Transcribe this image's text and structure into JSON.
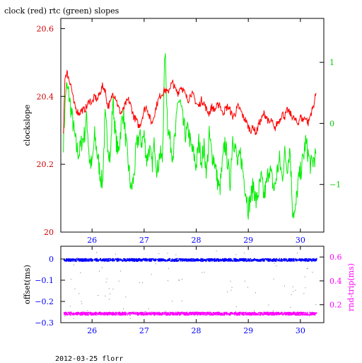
{
  "title": "clock (red) rtc (green) slopes",
  "footer": "2012-03-25 florr",
  "colors": {
    "clock": "#ff0000",
    "rtc": "#00ee00",
    "offset": "#0000ff",
    "rndtrip": "#ff00ff",
    "axis": "#000000"
  },
  "chart_data": [
    {
      "type": "line",
      "title": "clock (red) rtc (green) slopes",
      "xlabel": "",
      "ylabel": "clockslope",
      "xlim": [
        25.4,
        30.45
      ],
      "x_ticks": [
        26,
        27,
        28,
        29,
        30
      ],
      "ylim": [
        20.0,
        20.63
      ],
      "y_ticks": [
        20.0,
        20.2,
        20.4,
        20.6
      ],
      "y_tick_labels": [
        "20",
        "20.2",
        "20.4",
        "20.6"
      ],
      "y2lim": [
        -1.78,
        1.72
      ],
      "y2_ticks": [
        -1,
        0,
        1
      ],
      "y2_tick_labels": [
        "−1",
        "0",
        "1"
      ],
      "series": [
        {
          "name": "clock",
          "axis": "left",
          "x": [
            25.45,
            25.48,
            25.52,
            25.56,
            25.6,
            25.65,
            25.7,
            25.75,
            25.8,
            25.85,
            25.9,
            25.95,
            26.0,
            26.05,
            26.1,
            26.15,
            26.2,
            26.25,
            26.3,
            26.35,
            26.4,
            26.45,
            26.5,
            26.55,
            26.6,
            26.65,
            26.7,
            26.75,
            26.8,
            26.85,
            26.9,
            26.95,
            27.0,
            27.05,
            27.1,
            27.15,
            27.2,
            27.25,
            27.3,
            27.35,
            27.4,
            27.45,
            27.5,
            27.55,
            27.6,
            27.65,
            27.7,
            27.75,
            27.8,
            27.85,
            27.9,
            27.95,
            28.0,
            28.05,
            28.1,
            28.15,
            28.2,
            28.25,
            28.3,
            28.35,
            28.4,
            28.45,
            28.5,
            28.55,
            28.6,
            28.65,
            28.7,
            28.75,
            28.8,
            28.85,
            28.9,
            28.95,
            29.0,
            29.05,
            29.1,
            29.15,
            29.2,
            29.25,
            29.3,
            29.35,
            29.4,
            29.45,
            29.5,
            29.55,
            29.6,
            29.65,
            29.7,
            29.75,
            29.8,
            29.85,
            29.9,
            29.95,
            30.0,
            30.05,
            30.1,
            30.15,
            30.2,
            30.25,
            30.3
          ],
          "y": [
            20.28,
            20.46,
            20.47,
            20.45,
            20.43,
            20.38,
            20.36,
            20.35,
            20.36,
            20.36,
            20.37,
            20.39,
            20.38,
            20.4,
            20.39,
            20.41,
            20.43,
            20.42,
            20.37,
            20.38,
            20.41,
            20.4,
            20.37,
            20.35,
            20.36,
            20.38,
            20.39,
            20.37,
            20.34,
            20.33,
            20.31,
            20.33,
            20.36,
            20.37,
            20.34,
            20.32,
            20.35,
            20.38,
            20.4,
            20.41,
            20.42,
            20.41,
            20.43,
            20.44,
            20.42,
            20.41,
            20.43,
            20.42,
            20.4,
            20.39,
            20.41,
            20.4,
            20.38,
            20.37,
            20.39,
            20.38,
            20.36,
            20.35,
            20.37,
            20.36,
            20.37,
            20.38,
            20.35,
            20.36,
            20.37,
            20.36,
            20.34,
            20.35,
            20.37,
            20.36,
            20.34,
            20.33,
            20.31,
            20.3,
            20.31,
            20.29,
            20.32,
            20.33,
            20.35,
            20.34,
            20.32,
            20.33,
            20.3,
            20.32,
            20.33,
            20.35,
            20.34,
            20.36,
            20.35,
            20.34,
            20.33,
            20.32,
            20.34,
            20.33,
            20.34,
            20.32,
            20.35,
            20.37,
            20.41
          ]
        },
        {
          "name": "rtc",
          "axis": "right",
          "x": [
            25.45,
            25.5,
            25.55,
            25.6,
            25.65,
            25.7,
            25.75,
            25.8,
            25.85,
            25.9,
            25.95,
            26.0,
            26.05,
            26.1,
            26.15,
            26.2,
            26.25,
            26.3,
            26.35,
            26.4,
            26.45,
            26.5,
            26.55,
            26.6,
            26.65,
            26.7,
            26.75,
            26.8,
            26.85,
            26.9,
            26.95,
            27.0,
            27.05,
            27.1,
            27.15,
            27.2,
            27.25,
            27.3,
            27.35,
            27.4,
            27.45,
            27.5,
            27.55,
            27.6,
            27.65,
            27.7,
            27.75,
            27.8,
            27.85,
            27.9,
            27.95,
            28.0,
            28.05,
            28.1,
            28.15,
            28.2,
            28.25,
            28.3,
            28.35,
            28.4,
            28.45,
            28.5,
            28.55,
            28.6,
            28.65,
            28.7,
            28.75,
            28.8,
            28.85,
            28.9,
            28.95,
            29.0,
            29.05,
            29.1,
            29.15,
            29.2,
            29.25,
            29.3,
            29.35,
            29.4,
            29.45,
            29.5,
            29.55,
            29.6,
            29.65,
            29.7,
            29.75,
            29.8,
            29.85,
            29.9,
            29.95,
            30.0,
            30.05,
            30.1,
            30.15,
            30.2,
            30.25,
            30.3
          ],
          "y": [
            -0.3,
            0.6,
            0.5,
            0.2,
            -0.1,
            -0.4,
            -0.5,
            -0.3,
            -0.2,
            0.1,
            -0.6,
            -0.7,
            -0.2,
            -0.5,
            -0.8,
            -1.0,
            0.1,
            -0.3,
            -0.6,
            0.4,
            -0.2,
            -0.5,
            -0.1,
            0.2,
            -0.3,
            -0.7,
            -1.1,
            -0.9,
            -0.4,
            -0.2,
            -0.3,
            -0.2,
            -0.6,
            -0.4,
            -0.7,
            -0.3,
            -0.8,
            -0.5,
            -0.6,
            1.2,
            0.0,
            -0.3,
            -0.5,
            -0.2,
            0.4,
            0.3,
            0.0,
            -0.2,
            -0.1,
            -0.4,
            -0.5,
            -0.7,
            -0.3,
            -0.6,
            -0.4,
            -0.8,
            -0.2,
            -0.5,
            -0.6,
            -0.9,
            -1.1,
            -0.7,
            -0.3,
            -0.6,
            -1.0,
            -0.2,
            -0.4,
            -0.7,
            -0.5,
            -0.8,
            -1.1,
            -1.4,
            -1.2,
            -1.0,
            -1.3,
            -1.1,
            -0.9,
            -1.2,
            -1.0,
            -0.7,
            -0.9,
            -1.1,
            -0.8,
            -0.6,
            -0.9,
            -0.5,
            -0.7,
            -0.4,
            -1.4,
            -1.5,
            -1.0,
            -0.8,
            -0.6,
            -0.3,
            -0.5,
            -0.7,
            -0.6,
            -0.5
          ]
        }
      ]
    },
    {
      "type": "scatter",
      "xlabel": "",
      "ylabel": "offset(ms)",
      "y2label": "rnd-trip(ms)",
      "xlim": [
        25.4,
        30.45
      ],
      "x_ticks": [
        26,
        27,
        28,
        29,
        30
      ],
      "ylim": [
        -0.3,
        0.06
      ],
      "y_ticks": [
        0,
        -0.1,
        -0.2,
        -0.3
      ],
      "y_tick_labels": [
        "0",
        "−0.1",
        "−0.2",
        "−0.3"
      ],
      "y2lim": [
        0.05,
        0.69
      ],
      "y2_ticks": [
        0.2,
        0.4,
        0.6
      ],
      "y2_tick_labels": [
        "0.2",
        "0.4",
        "0.6"
      ],
      "series": [
        {
          "name": "offset",
          "axis": "left",
          "x_range": [
            25.45,
            30.3
          ],
          "y_center": -0.002,
          "y_spread": 0.006
        },
        {
          "name": "rnd-trip",
          "axis": "right",
          "x_range": [
            25.45,
            30.3
          ],
          "y_center": 0.13,
          "y_spread": 0.012
        }
      ]
    }
  ]
}
